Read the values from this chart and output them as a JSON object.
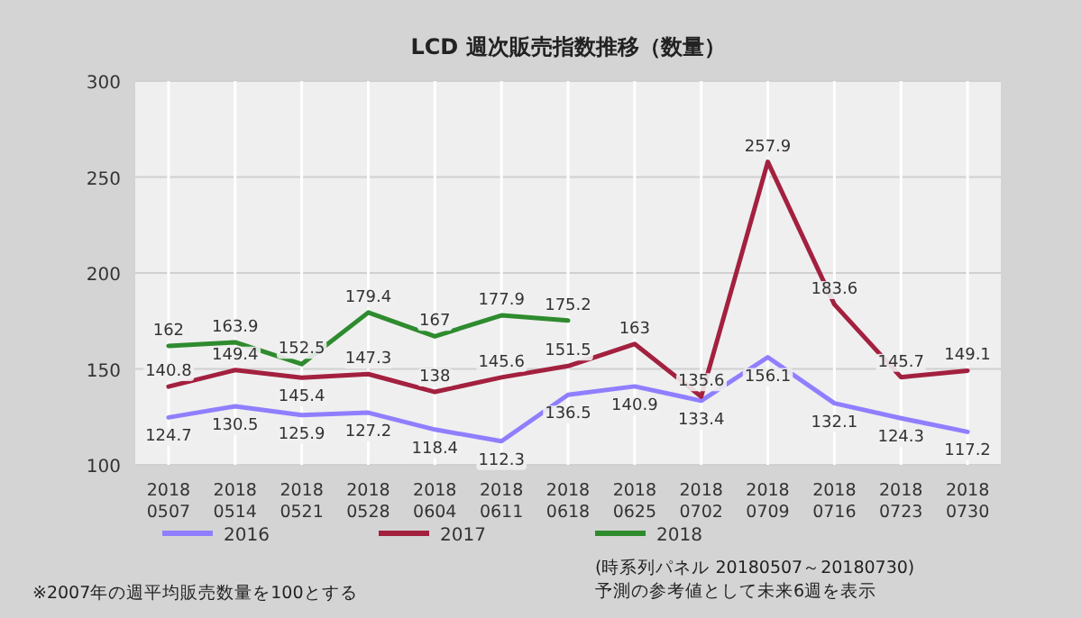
{
  "chart_data": {
    "type": "line",
    "title": "LCD 週次販売指数推移（数量）",
    "categories": [
      "2018 0507",
      "2018 0514",
      "2018 0521",
      "2018 0528",
      "2018 0604",
      "2018 0611",
      "2018 0618",
      "2018 0625",
      "2018 0702",
      "2018 0709",
      "2018 0716",
      "2018 0723",
      "2018 0730"
    ],
    "series": [
      {
        "name": "2016",
        "color": "#8f7fff",
        "values": [
          124.7,
          130.5,
          125.9,
          127.2,
          118.4,
          112.3,
          136.5,
          140.9,
          133.4,
          156.1,
          132.1,
          124.3,
          117.2
        ]
      },
      {
        "name": "2017",
        "color": "#a3203f",
        "values": [
          140.8,
          149.4,
          145.4,
          147.3,
          138,
          145.6,
          151.5,
          163,
          135.6,
          257.9,
          183.6,
          145.7,
          149.1
        ]
      },
      {
        "name": "2018",
        "color": "#2e8b2e",
        "values": [
          162,
          163.9,
          152.5,
          179.4,
          167,
          177.9,
          175.2,
          null,
          null,
          null,
          null,
          null,
          null
        ]
      }
    ],
    "ylim": [
      100,
      300
    ],
    "yticks": [
      100,
      150,
      200,
      250,
      300
    ],
    "grid": true,
    "legend": "bottom",
    "data_labels": true,
    "marker": "none",
    "line_style": "solid",
    "annotations": [
      "※2007年の週平均販売数量を100とする",
      "(時系列パネル 20180507～20180730)",
      "予測の参考値として未来6週を表示"
    ]
  }
}
